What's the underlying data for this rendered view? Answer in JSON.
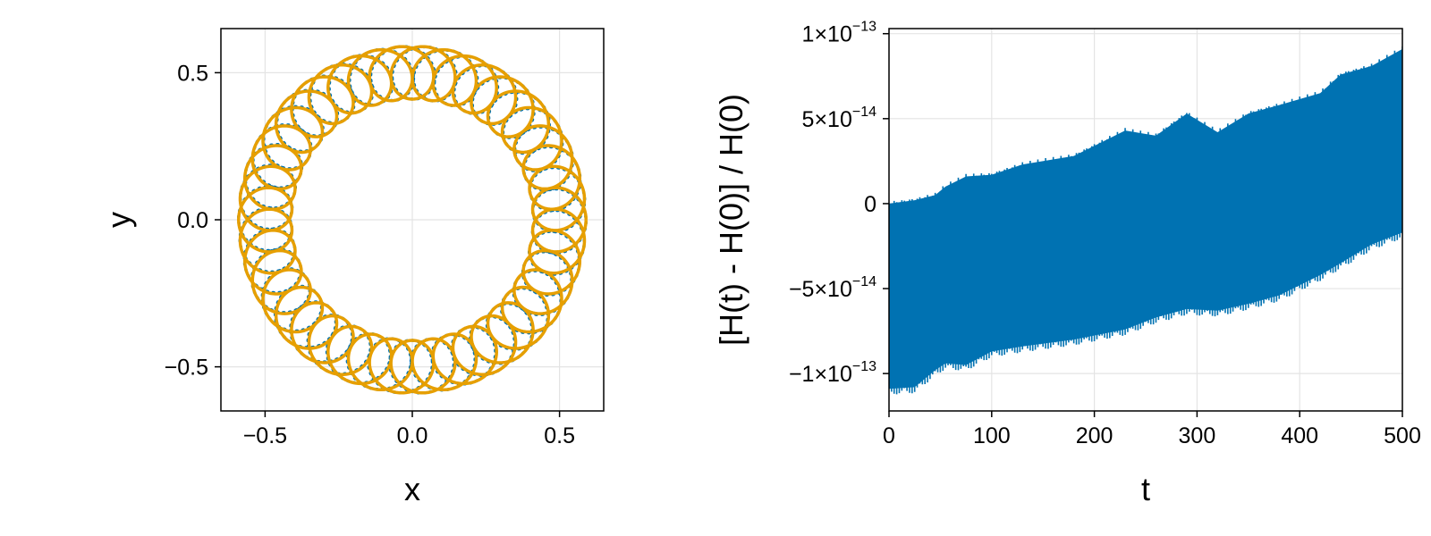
{
  "chart_data": [
    {
      "type": "line",
      "xlabel": "x",
      "ylabel": "y",
      "xlim": [
        -0.65,
        0.65
      ],
      "ylim": [
        -0.65,
        0.65
      ],
      "xticks": [
        -0.5,
        0.0,
        0.5
      ],
      "yticks": [
        -0.5,
        0.0,
        0.5
      ],
      "xtick_labels": [
        "−0.5",
        "0.0",
        "0.5"
      ],
      "ytick_labels": [
        "−0.5",
        "0.0",
        "0.5"
      ],
      "grid": true,
      "aspect": "equal",
      "series": [
        {
          "style": "dotted",
          "color": "#0072b2",
          "curve": "epitrochoid",
          "mean_radius": 0.5,
          "wobble_amplitude": 0.09,
          "wobble_frequency": 43,
          "min_radius": 0.4,
          "max_radius": 0.59
        },
        {
          "style": "solid",
          "color": "#e69f00",
          "curve": "epitrochoid",
          "mean_radius": 0.5,
          "wobble_amplitude": 0.09,
          "wobble_frequency": 43,
          "min_radius": 0.4,
          "max_radius": 0.59
        }
      ]
    },
    {
      "type": "area",
      "xlabel": "t",
      "ylabel": "[H(t) - H(0)] / H(0)",
      "xlim": [
        0,
        500
      ],
      "ylim": [
        -1.22e-13,
        1.03e-13
      ],
      "xticks": [
        0,
        100,
        200,
        300,
        400,
        500
      ],
      "xtick_labels": [
        "0",
        "100",
        "200",
        "300",
        "400",
        "500"
      ],
      "yticks": [
        {
          "value": 1e-13,
          "mant": "1",
          "exp": "−13"
        },
        {
          "value": 5e-14,
          "mant": "5",
          "exp": "−14"
        },
        {
          "value": 0,
          "mant": "0",
          "exp": ""
        },
        {
          "value": -5e-14,
          "mant": "−5",
          "exp": "−14"
        },
        {
          "value": -1e-13,
          "mant": "−1",
          "exp": "−13"
        }
      ],
      "grid": true,
      "color": "#0072b2",
      "envelope": {
        "t": [
          0,
          25,
          45,
          55,
          75,
          100,
          130,
          180,
          230,
          260,
          290,
          320,
          350,
          380,
          420,
          440,
          470,
          500
        ],
        "upper": [
          0,
          2e-15,
          5e-15,
          1e-14,
          1.6e-14,
          1.7e-14,
          2.3e-14,
          2.8e-14,
          4.3e-14,
          4e-14,
          5.3e-14,
          4.2e-14,
          5.3e-14,
          5.8e-14,
          6.5e-14,
          7.6e-14,
          8.1e-14,
          9.1e-14
        ],
        "lower": [
          -1.09e-13,
          -1.08e-13,
          -9.8e-14,
          -9.4e-14,
          -9.5e-14,
          -8.7e-14,
          -8.4e-14,
          -8e-14,
          -7.4e-14,
          -6.7e-14,
          -6.2e-14,
          -6.3e-14,
          -5.9e-14,
          -5.4e-14,
          -4.2e-14,
          -3.5e-14,
          -2.4e-14,
          -1.7e-14
        ]
      }
    }
  ]
}
